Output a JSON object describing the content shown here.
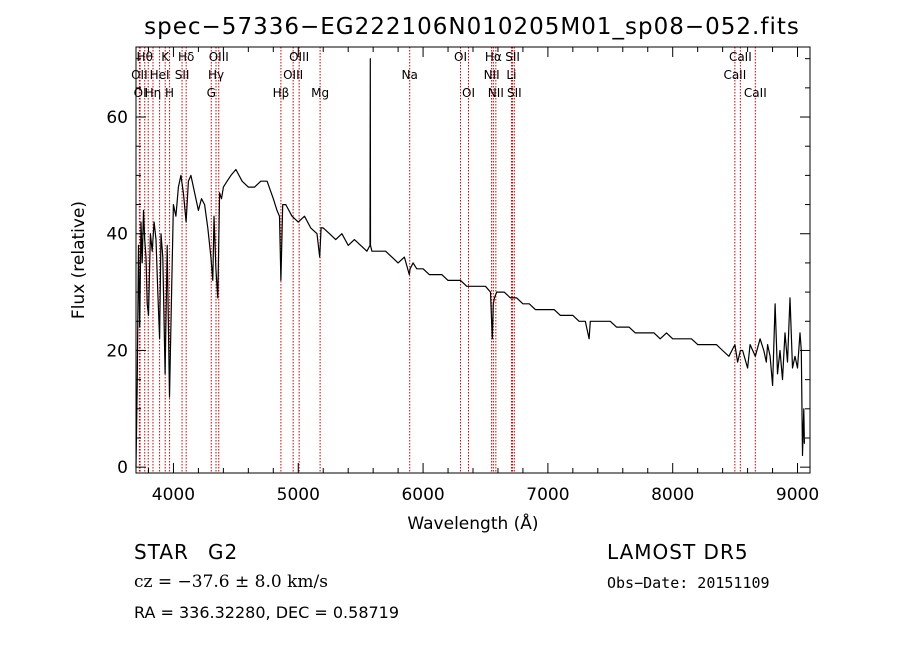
{
  "chart_data": {
    "type": "line",
    "title": "spec−57336−EG222106N010205M01_sp08−052.fits",
    "xlabel": "Wavelength (Å)",
    "ylabel": "Flux (relative)",
    "xlim": [
      3700,
      9100
    ],
    "ylim": [
      -1,
      72
    ],
    "x_ticks": [
      4000,
      5000,
      6000,
      7000,
      8000,
      9000
    ],
    "y_ticks": [
      0,
      20,
      40,
      60
    ],
    "grid": false,
    "series": [
      {
        "color": "#000000",
        "x": [
          3700,
          3710,
          3720,
          3730,
          3740,
          3750,
          3760,
          3770,
          3780,
          3790,
          3800,
          3815,
          3830,
          3845,
          3860,
          3875,
          3889,
          3900,
          3915,
          3933,
          3950,
          3968,
          3985,
          4000,
          4020,
          4040,
          4060,
          4080,
          4101,
          4120,
          4140,
          4160,
          4180,
          4200,
          4225,
          4250,
          4275,
          4300,
          4315,
          4325,
          4340,
          4355,
          4370,
          4385,
          4400,
          4430,
          4460,
          4500,
          4550,
          4600,
          4650,
          4700,
          4750,
          4800,
          4830,
          4850,
          4861,
          4875,
          4900,
          4950,
          5000,
          5050,
          5100,
          5150,
          5172,
          5183,
          5200,
          5250,
          5300,
          5350,
          5400,
          5450,
          5500,
          5550,
          5575,
          5577,
          5579,
          5590,
          5600,
          5650,
          5700,
          5750,
          5800,
          5850,
          5890,
          5896,
          5920,
          5950,
          6000,
          6050,
          6100,
          6150,
          6200,
          6250,
          6300,
          6350,
          6400,
          6450,
          6500,
          6540,
          6555,
          6563,
          6572,
          6590,
          6620,
          6650,
          6700,
          6750,
          6800,
          6850,
          6900,
          6950,
          7000,
          7050,
          7100,
          7150,
          7200,
          7250,
          7300,
          7330,
          7340,
          7350,
          7400,
          7450,
          7500,
          7550,
          7600,
          7650,
          7700,
          7750,
          7800,
          7850,
          7900,
          7950,
          8000,
          8050,
          8100,
          8150,
          8200,
          8250,
          8300,
          8350,
          8400,
          8450,
          8498,
          8520,
          8542,
          8560,
          8600,
          8620,
          8662,
          8700,
          8730,
          8750,
          8760,
          8780,
          8800,
          8820,
          8840,
          8860,
          8880,
          8900,
          8920,
          8940,
          8960,
          8980,
          9000,
          9020,
          9030,
          9040,
          9050,
          9055
        ],
        "y": [
          0,
          14,
          38,
          24,
          42,
          35,
          44,
          39,
          36,
          28,
          26,
          40,
          37,
          42,
          39,
          30,
          22,
          40,
          36,
          16,
          38,
          12,
          30,
          45,
          43,
          48,
          50,
          47,
          42,
          49,
          50,
          48,
          46,
          44,
          46,
          45,
          41,
          36,
          32,
          43,
          34,
          29,
          47,
          46,
          48,
          49,
          50,
          51,
          49,
          48,
          48,
          49,
          49,
          46,
          44,
          43,
          32,
          45,
          45,
          43,
          42,
          43,
          41,
          40,
          36,
          41,
          41,
          40,
          39,
          40,
          38,
          39,
          38,
          37,
          38,
          70,
          38,
          37,
          37,
          37,
          37,
          36,
          35,
          36,
          33,
          34,
          35,
          34,
          34,
          33,
          33,
          33,
          32,
          32,
          32,
          31,
          31,
          31,
          31,
          30,
          22,
          28,
          29,
          30,
          30,
          30,
          29,
          29,
          28,
          28,
          27,
          27,
          27,
          27,
          26,
          26,
          26,
          25,
          25,
          22,
          25,
          25,
          25,
          25,
          25,
          24,
          24,
          24,
          23,
          23,
          23,
          23,
          22,
          23,
          22,
          22,
          22,
          22,
          21,
          21,
          21,
          21,
          20,
          19,
          21,
          18,
          20,
          20,
          17,
          21,
          19,
          22,
          20,
          18,
          21,
          19,
          14,
          28,
          16,
          20,
          15,
          23,
          18,
          29,
          17,
          19,
          17,
          23,
          20,
          2,
          10,
          4
        ]
      }
    ],
    "line_groups": [
      {
        "lines": [
          3733,
          3727,
          3770,
          3798,
          3836,
          3889,
          3934,
          3969,
          4069,
          4102,
          4303,
          4341,
          4363,
          4861,
          4959,
          5007,
          5175,
          5893,
          6300,
          6364,
          6549,
          6563,
          6583,
          6708,
          6717,
          6731,
          8498,
          8542,
          8662
        ]
      }
    ],
    "line_labels": [
      {
        "text": "Hθ",
        "x": 3770,
        "row": 0
      },
      {
        "text": "K",
        "x": 3934,
        "row": 0
      },
      {
        "text": "Hδ",
        "x": 4102,
        "row": 0
      },
      {
        "text": "OIII",
        "x": 4363,
        "row": 0
      },
      {
        "text": "OIII",
        "x": 5007,
        "row": 0
      },
      {
        "text": "OI",
        "x": 6300,
        "row": 0
      },
      {
        "text": "Hα",
        "x": 6563,
        "row": 0
      },
      {
        "text": "SII",
        "x": 6717,
        "row": 0
      },
      {
        "text": "CaII",
        "x": 8542,
        "row": 0
      },
      {
        "text": "OII",
        "x": 3727,
        "row": 1
      },
      {
        "text": "HeI",
        "x": 3889,
        "row": 1
      },
      {
        "text": "SII",
        "x": 4069,
        "row": 1
      },
      {
        "text": "Hγ",
        "x": 4341,
        "row": 1
      },
      {
        "text": "OIII",
        "x": 4959,
        "row": 1
      },
      {
        "text": "Na",
        "x": 5893,
        "row": 1
      },
      {
        "text": "NII",
        "x": 6549,
        "row": 1
      },
      {
        "text": "Li",
        "x": 6708,
        "row": 1
      },
      {
        "text": "CaII",
        "x": 8498,
        "row": 1
      },
      {
        "text": "OI",
        "x": 3733,
        "row": 2
      },
      {
        "text": "Hη",
        "x": 3836,
        "row": 2
      },
      {
        "text": "H",
        "x": 3969,
        "row": 2
      },
      {
        "text": "G",
        "x": 4303,
        "row": 2
      },
      {
        "text": "Hβ",
        "x": 4861,
        "row": 2
      },
      {
        "text": "Mg",
        "x": 5175,
        "row": 2
      },
      {
        "text": "OI",
        "x": 6364,
        "row": 2
      },
      {
        "text": "NII",
        "x": 6583,
        "row": 2
      },
      {
        "text": "SII",
        "x": 6731,
        "row": 2
      },
      {
        "text": "CaII",
        "x": 8662,
        "row": 2
      }
    ],
    "line_marker_color": "#cc0000"
  },
  "info": {
    "object_class": "STAR",
    "subclass": "G2",
    "survey": "LAMOST DR5",
    "redshift": "cz = −37.6 ± 8.0 km/s",
    "obs_date": "Obs−Date: 20151109",
    "coords": "RA = 336.32280, DEC =   0.58719"
  }
}
